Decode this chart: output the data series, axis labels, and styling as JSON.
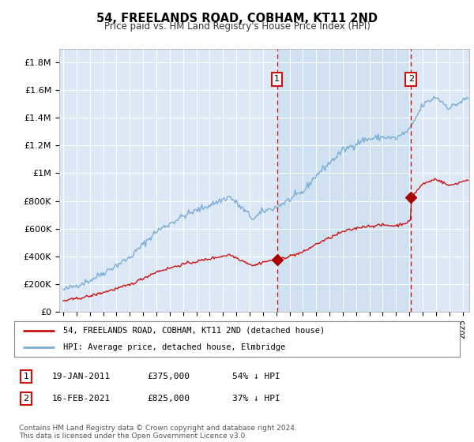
{
  "title": "54, FREELANDS ROAD, COBHAM, KT11 2ND",
  "subtitle": "Price paid vs. HM Land Registry's House Price Index (HPI)",
  "plot_bg_color": "#dce8f5",
  "ylim": [
    0,
    1900000
  ],
  "yticks": [
    0,
    200000,
    400000,
    600000,
    800000,
    1000000,
    1200000,
    1400000,
    1600000,
    1800000
  ],
  "ytick_labels": [
    "£0",
    "£200K",
    "£400K",
    "£600K",
    "£800K",
    "£1M",
    "£1.2M",
    "£1.4M",
    "£1.6M",
    "£1.8M"
  ],
  "hpi_color": "#7aadd4",
  "price_color": "#cc1111",
  "marker_color": "#aa0000",
  "vline_color": "#cc1111",
  "shade_color": "#c8dff0",
  "sale1_year": 2011.05,
  "sale1_price": 375000,
  "sale1_label": "1",
  "sale2_year": 2021.13,
  "sale2_price": 825000,
  "sale2_label": "2",
  "legend_line1": "54, FREELANDS ROAD, COBHAM, KT11 2ND (detached house)",
  "legend_line2": "HPI: Average price, detached house, Elmbridge",
  "table_row1": [
    "1",
    "19-JAN-2011",
    "£375,000",
    "54% ↓ HPI"
  ],
  "table_row2": [
    "2",
    "16-FEB-2021",
    "£825,000",
    "37% ↓ HPI"
  ],
  "footnote": "Contains HM Land Registry data © Crown copyright and database right 2024.\nThis data is licensed under the Open Government Licence v3.0.",
  "xlim_start": 1994.7,
  "xlim_end": 2025.5
}
